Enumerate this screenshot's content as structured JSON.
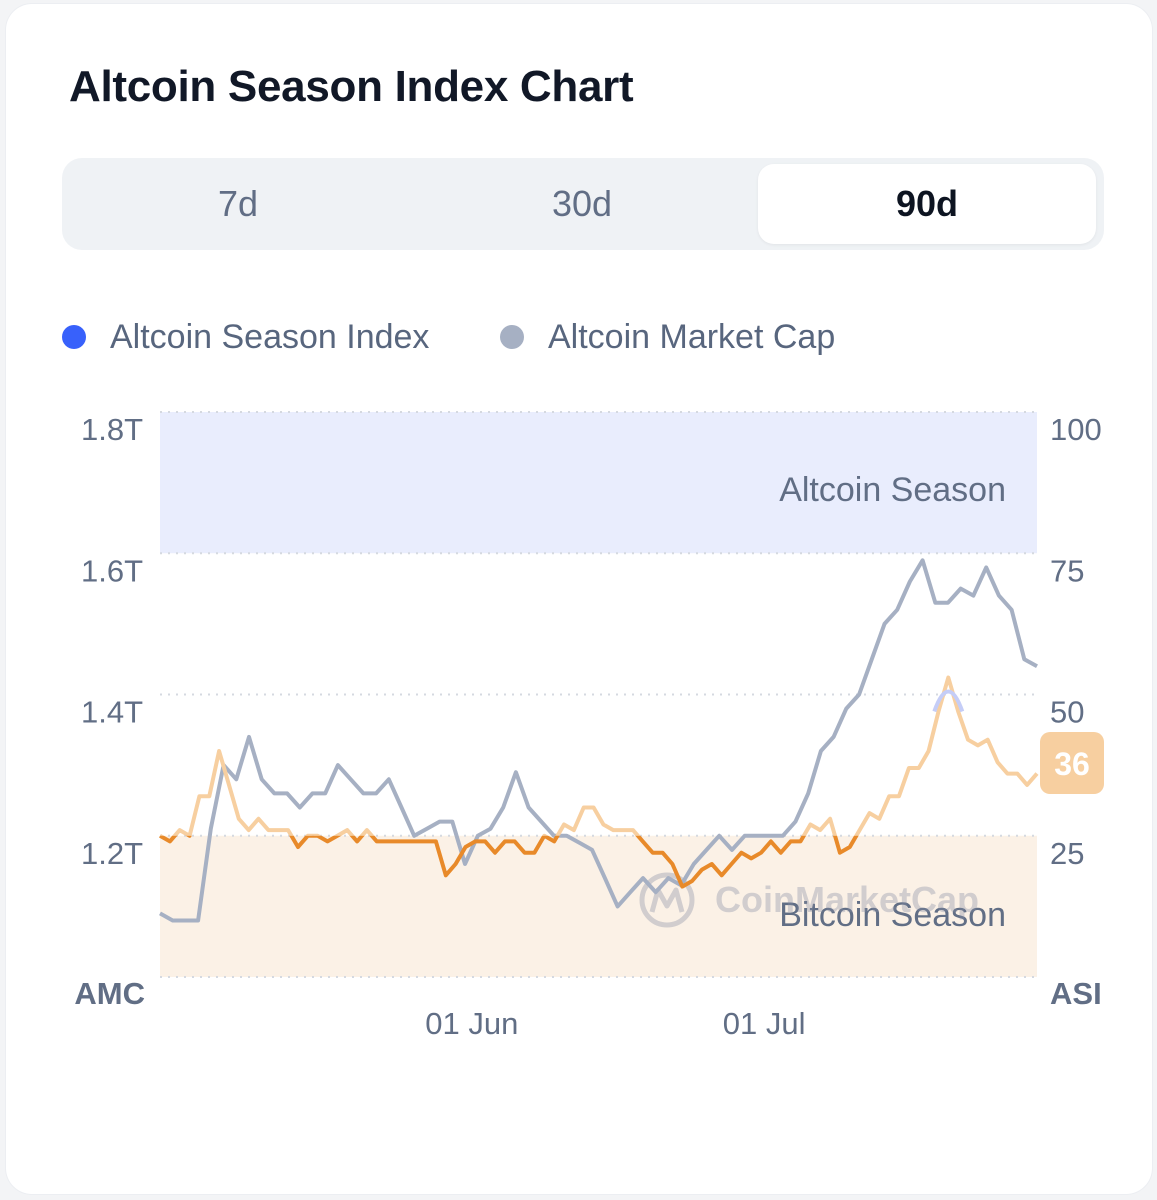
{
  "title": "Altcoin Season Index Chart",
  "tabs": [
    {
      "label": "7d",
      "active": false
    },
    {
      "label": "30d",
      "active": false
    },
    {
      "label": "90d",
      "active": true
    }
  ],
  "legend": [
    {
      "label": "Altcoin Season Index",
      "color": "#3861fb"
    },
    {
      "label": "Altcoin Market Cap",
      "color": "#a6b0c3"
    }
  ],
  "chart_data": {
    "type": "line",
    "left_axis": {
      "label": "AMC",
      "ticks": [
        "1.2T",
        "1.4T",
        "1.6T",
        "1.8T"
      ],
      "ylim": [
        1.0,
        1.8
      ],
      "unit": "T"
    },
    "right_axis": {
      "label": "ASI",
      "ticks": [
        "25",
        "50",
        "75",
        "100"
      ],
      "ylim": [
        0,
        100
      ]
    },
    "x_ticks": [
      {
        "label": "01 Jun",
        "day": 32
      },
      {
        "label": "01 Jul",
        "day": 62
      }
    ],
    "x_range": [
      0,
      90
    ],
    "bands": [
      {
        "label": "Altcoin Season",
        "from": 75,
        "to": 100,
        "color": "#e9edfd"
      },
      {
        "label": "Bitcoin Season",
        "from": 0,
        "to": 25,
        "color": "#fbf1e6"
      }
    ],
    "current_value": "36",
    "watermark": "CoinMarketCap",
    "series": [
      {
        "name": "Altcoin Season Index",
        "axis": "right",
        "values": [
          25,
          24,
          26,
          25,
          32,
          32,
          40,
          34,
          28,
          26,
          28,
          26,
          26,
          26,
          23,
          25,
          25,
          24,
          25,
          26,
          24,
          26,
          24,
          24,
          24,
          24,
          24,
          24,
          24,
          18,
          20,
          23,
          24,
          24,
          22,
          24,
          24,
          22,
          22,
          25,
          24,
          27,
          26,
          30,
          30,
          27,
          26,
          26,
          26,
          24,
          22,
          22,
          20,
          16,
          17,
          19,
          20,
          18,
          20,
          22,
          21,
          22,
          24,
          22,
          24,
          24,
          27,
          26,
          28,
          22,
          23,
          26,
          29,
          28,
          32,
          32,
          37,
          37,
          40,
          47,
          53,
          47,
          42,
          41,
          42,
          38,
          36,
          36,
          34,
          36
        ]
      },
      {
        "name": "Altcoin Market Cap",
        "axis": "left",
        "values": [
          1.09,
          1.08,
          1.08,
          1.08,
          1.21,
          1.3,
          1.28,
          1.34,
          1.28,
          1.26,
          1.26,
          1.24,
          1.26,
          1.26,
          1.3,
          1.28,
          1.26,
          1.26,
          1.28,
          1.24,
          1.2,
          1.21,
          1.22,
          1.22,
          1.16,
          1.2,
          1.21,
          1.24,
          1.29,
          1.24,
          1.22,
          1.2,
          1.2,
          1.19,
          1.18,
          1.14,
          1.1,
          1.12,
          1.14,
          1.12,
          1.14,
          1.13,
          1.16,
          1.18,
          1.2,
          1.18,
          1.2,
          1.2,
          1.2,
          1.2,
          1.22,
          1.26,
          1.32,
          1.34,
          1.38,
          1.4,
          1.45,
          1.5,
          1.52,
          1.56,
          1.59,
          1.53,
          1.53,
          1.55,
          1.54,
          1.58,
          1.54,
          1.52,
          1.45,
          1.44
        ]
      }
    ]
  }
}
